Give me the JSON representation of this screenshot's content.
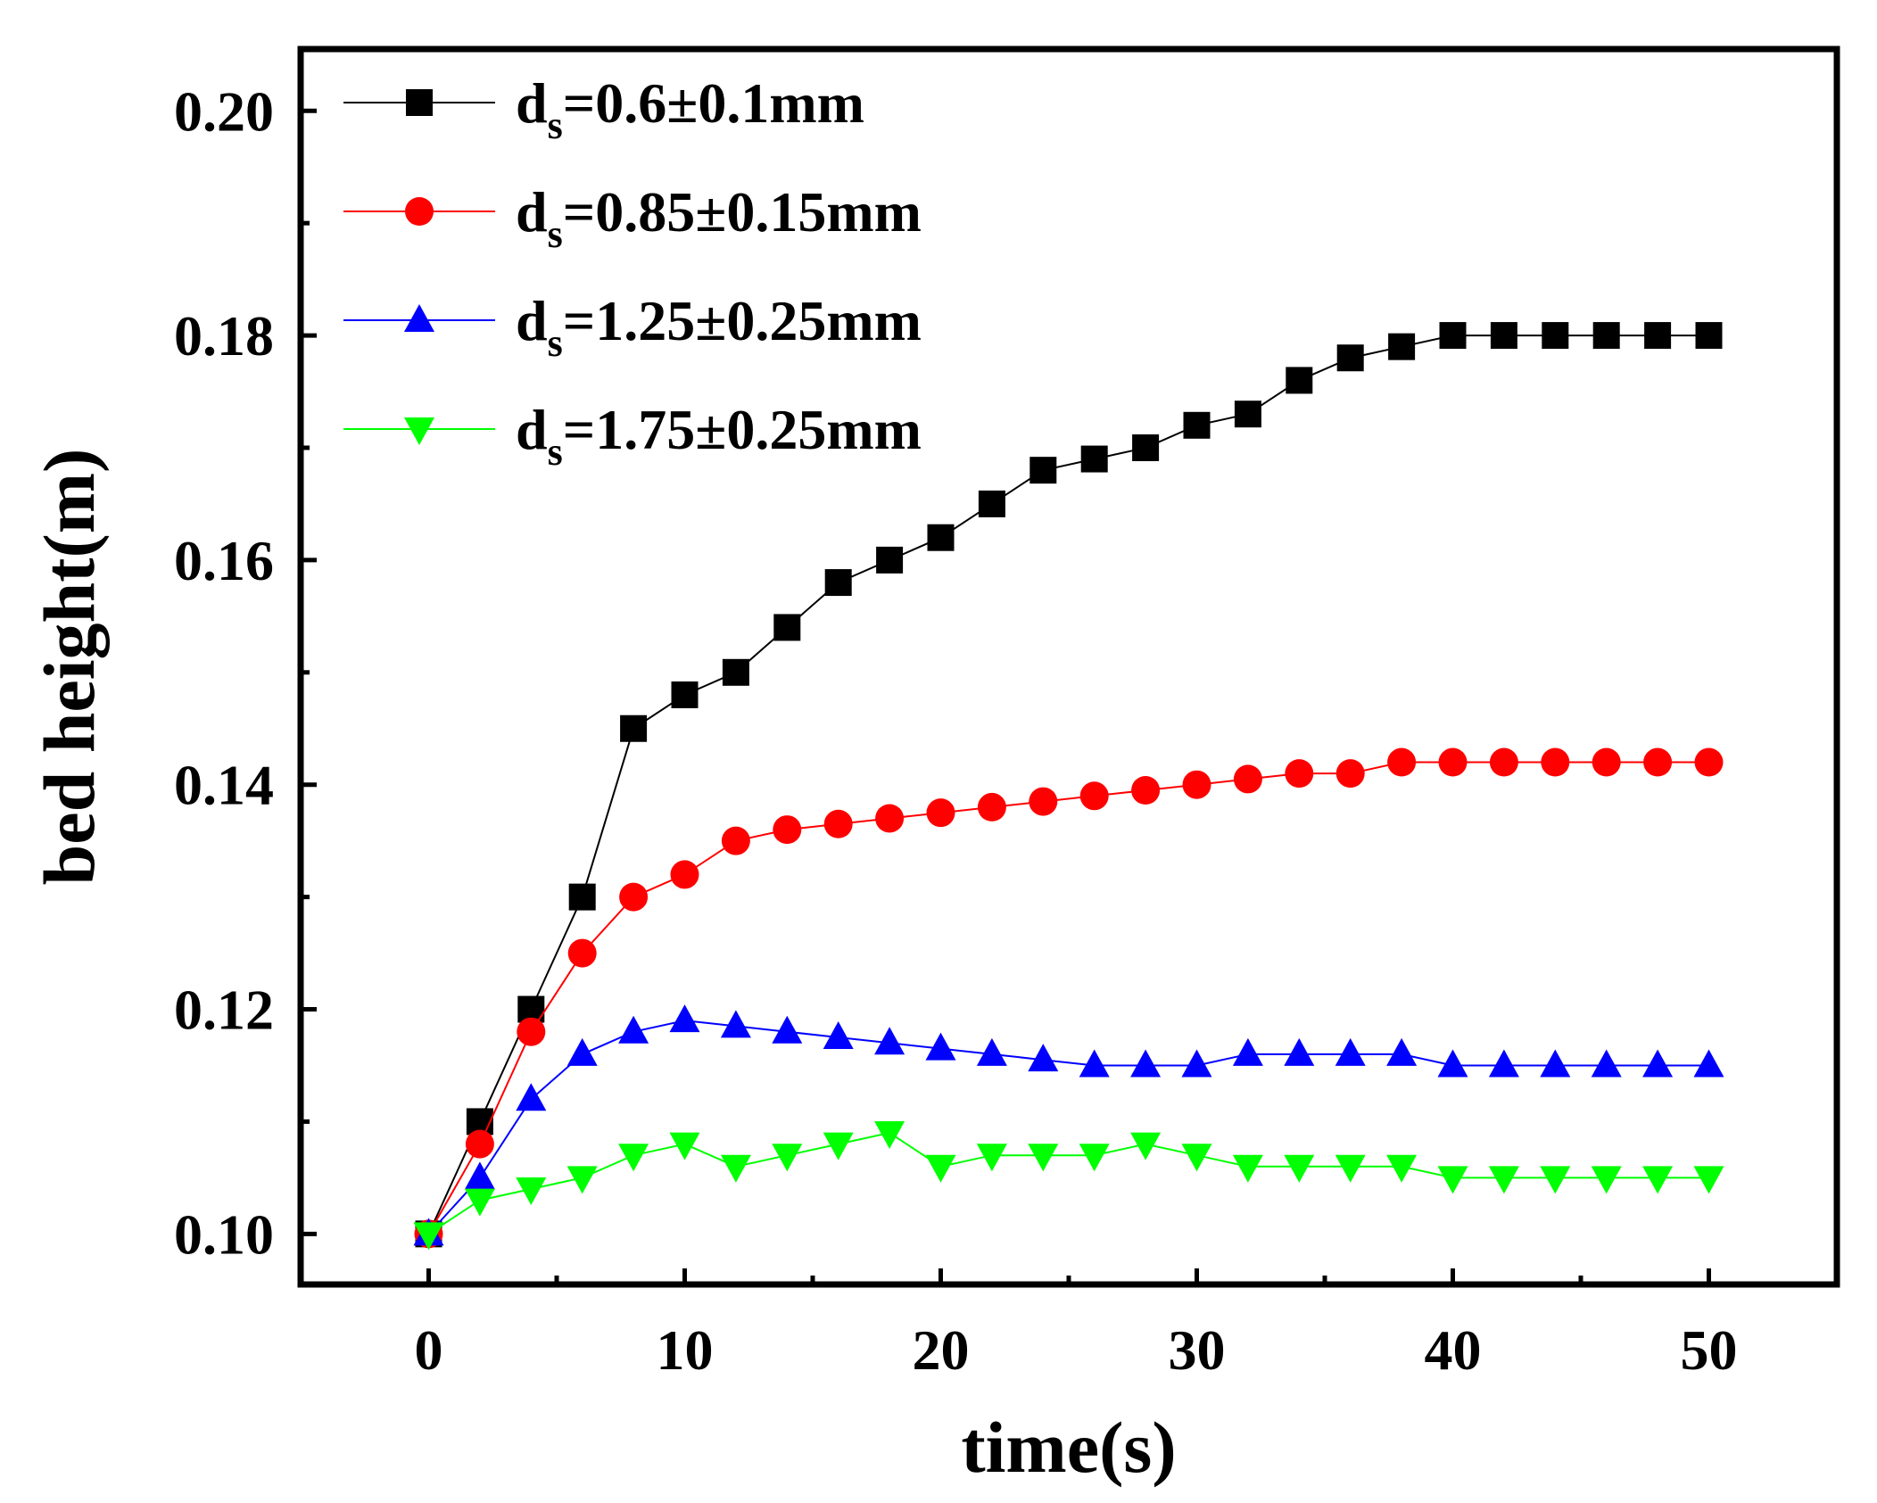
{
  "chart_data": {
    "type": "line",
    "title": "",
    "xlabel": "time(s)",
    "ylabel": "bed height(m)",
    "xlim": [
      -5,
      55
    ],
    "ylim": [
      0.0955,
      0.2055
    ],
    "xticks": [
      0,
      10,
      20,
      30,
      40,
      50
    ],
    "xtick_labels": [
      "0",
      "10",
      "20",
      "30",
      "40",
      "50"
    ],
    "yticks": [
      0.1,
      0.12,
      0.14,
      0.16,
      0.18,
      0.2
    ],
    "ytick_labels": [
      "0.10",
      "0.12",
      "0.14",
      "0.16",
      "0.18",
      "0.20"
    ],
    "grid": false,
    "legend_position": "top-left",
    "x": [
      0,
      2,
      4,
      6,
      8,
      10,
      12,
      14,
      16,
      18,
      20,
      22,
      24,
      26,
      28,
      30,
      32,
      34,
      36,
      38,
      40,
      42,
      44,
      46,
      48,
      50
    ],
    "series": [
      {
        "name": "ds=0.6±0.1mm",
        "label_main": "d",
        "label_sub": "s",
        "label_rest": "=0.6±0.1mm",
        "color": "#000000",
        "marker": "square",
        "values": [
          0.1,
          0.11,
          0.12,
          0.13,
          0.145,
          0.148,
          0.15,
          0.154,
          0.158,
          0.16,
          0.162,
          0.165,
          0.168,
          0.169,
          0.17,
          0.172,
          0.173,
          0.176,
          0.178,
          0.179,
          0.18,
          0.18,
          0.18,
          0.18,
          0.18,
          0.18
        ]
      },
      {
        "name": "ds=0.85±0.15mm",
        "label_main": "d",
        "label_sub": "s",
        "label_rest": "=0.85±0.15mm",
        "color": "#ff0000",
        "marker": "circle",
        "values": [
          0.1,
          0.108,
          0.118,
          0.125,
          0.13,
          0.132,
          0.135,
          0.136,
          0.1365,
          0.137,
          0.1375,
          0.138,
          0.1385,
          0.139,
          0.1395,
          0.14,
          0.1405,
          0.141,
          0.141,
          0.142,
          0.142,
          0.142,
          0.142,
          0.142,
          0.142,
          0.142
        ]
      },
      {
        "name": "ds=1.25±0.25mm",
        "label_main": "d",
        "label_sub": "s",
        "label_rest": "=1.25±0.25mm",
        "color": "#0000ff",
        "marker": "triangle-up",
        "values": [
          0.1,
          0.105,
          0.112,
          0.116,
          0.118,
          0.119,
          0.1185,
          0.118,
          0.1175,
          0.117,
          0.1165,
          0.116,
          0.1155,
          0.115,
          0.115,
          0.115,
          0.116,
          0.116,
          0.116,
          0.116,
          0.115,
          0.115,
          0.115,
          0.115,
          0.115,
          0.115
        ]
      },
      {
        "name": "ds=1.75±0.25mm",
        "label_main": "d",
        "label_sub": "s",
        "label_rest": "=1.75±0.25mm",
        "color": "#00ff00",
        "marker": "triangle-down",
        "values": [
          0.1,
          0.103,
          0.104,
          0.105,
          0.107,
          0.108,
          0.106,
          0.107,
          0.108,
          0.109,
          0.106,
          0.107,
          0.107,
          0.107,
          0.108,
          0.107,
          0.106,
          0.106,
          0.106,
          0.106,
          0.105,
          0.105,
          0.105,
          0.105,
          0.105,
          0.105
        ]
      }
    ]
  }
}
